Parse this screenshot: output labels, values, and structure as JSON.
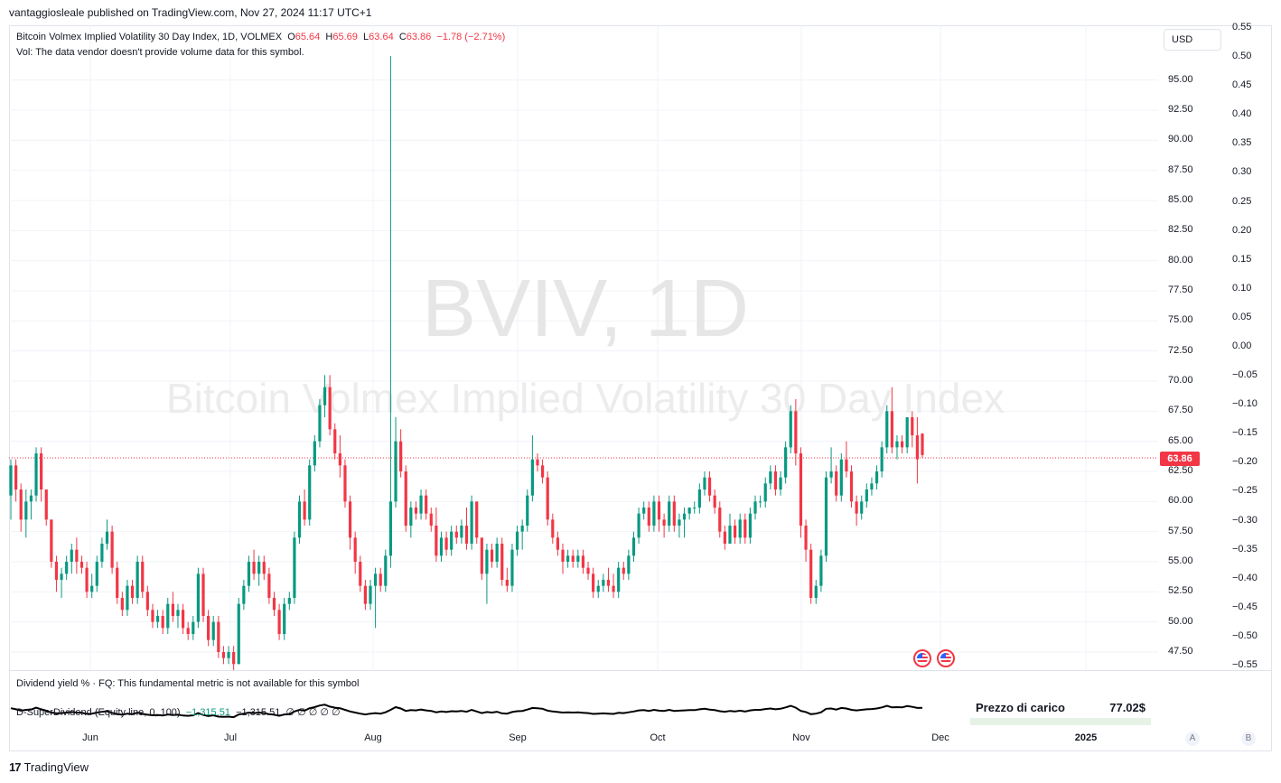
{
  "header": {
    "publish_line": "vantaggiosleale published on TradingView.com, Nov 27, 2024 11:17 UTC+1"
  },
  "legend": {
    "title": "Bitcoin Volmex Implied Volatility 30 Day Index, 1D, VOLMEX",
    "o_label": "O",
    "o_value": "65.64",
    "h_label": "H",
    "h_value": "65.69",
    "l_label": "L",
    "l_value": "63.64",
    "c_label": "C",
    "c_value": "63.86",
    "change": "−1.78 (−2.71%)",
    "vol_note": "Vol: The data vendor doesn't provide volume data for this symbol."
  },
  "watermark": {
    "symbol": "BVIV, 1D",
    "name": "Bitcoin Volmex Implied Volatility 30 Day Index"
  },
  "currency_button": "USD",
  "last_price": "63.86",
  "price_axis_labels": [
    "95.00",
    "92.50",
    "90.00",
    "87.50",
    "85.00",
    "82.50",
    "80.00",
    "77.50",
    "75.00",
    "72.50",
    "70.00",
    "67.50",
    "65.00",
    "62.50",
    "60.00",
    "57.50",
    "55.00",
    "52.50",
    "50.00",
    "47.50"
  ],
  "right_axis_labels": [
    "0.55",
    "0.50",
    "0.45",
    "0.40",
    "0.35",
    "0.30",
    "0.25",
    "0.20",
    "0.15",
    "0.10",
    "0.05",
    "0.00",
    "−0.05",
    "−0.10",
    "−0.15",
    "−0.20",
    "−0.25",
    "−0.30",
    "−0.35",
    "−0.40",
    "−0.45",
    "−0.50",
    "−0.55"
  ],
  "dividend_pane": {
    "legend": "Dividend yield % · FQ: This fundamental metric is not available for this symbol"
  },
  "superdividend": {
    "name": "D-SuperDividend (Equity line, 0, 100)",
    "value1": "−1,315.51",
    "value2": "−1,315.51",
    "zeros": "∅  ∅  ∅  ∅  ∅"
  },
  "overlay": {
    "label": "Prezzo di carico",
    "value": "77.02$"
  },
  "time_axis": {
    "labels": [
      {
        "text": "Jun",
        "bold": false
      },
      {
        "text": "Jul",
        "bold": false
      },
      {
        "text": "Aug",
        "bold": false
      },
      {
        "text": "Sep",
        "bold": false
      },
      {
        "text": "Oct",
        "bold": false
      },
      {
        "text": "Nov",
        "bold": false
      },
      {
        "text": "Dec",
        "bold": false
      },
      {
        "text": "2025",
        "bold": true
      }
    ]
  },
  "buttons": {
    "auto": "A",
    "b": "B"
  },
  "footer": {
    "brand": "TradingView",
    "logo": "17"
  },
  "colors": {
    "up": "#089981",
    "down": "#f23645",
    "grid": "#f0f3fa"
  },
  "chart_data": {
    "type": "candlestick",
    "title": "Bitcoin Volmex Implied Volatility 30 Day Index, 1D, VOLMEX",
    "ylim": [
      46,
      97
    ],
    "candles": [
      [
        60.5,
        63.5,
        58.5,
        63
      ],
      [
        63,
        63.5,
        60,
        61
      ],
      [
        61,
        61.5,
        57.5,
        58.5
      ],
      [
        58.5,
        61,
        57,
        60
      ],
      [
        60,
        61,
        58.5,
        60.5
      ],
      [
        60.5,
        64.5,
        60,
        64
      ],
      [
        64,
        64.5,
        60,
        61
      ],
      [
        61,
        61,
        58,
        58.5
      ],
      [
        58.5,
        58.5,
        54.5,
        55
      ],
      [
        55,
        55.5,
        52.5,
        53.5
      ],
      [
        53.5,
        54.5,
        52,
        54
      ],
      [
        54,
        55.5,
        53.5,
        55
      ],
      [
        55,
        56.5,
        54,
        56
      ],
      [
        56,
        57,
        54,
        55
      ],
      [
        55,
        55.5,
        54,
        54.5
      ],
      [
        54.5,
        55,
        52,
        52.5
      ],
      [
        52.5,
        54,
        52,
        53
      ],
      [
        53,
        55.5,
        52.5,
        55
      ],
      [
        55,
        57,
        54.5,
        56.5
      ],
      [
        56.5,
        58.5,
        56,
        57.5
      ],
      [
        57.5,
        58,
        54,
        54.5
      ],
      [
        54.5,
        55,
        51.5,
        52
      ],
      [
        52,
        52.5,
        50.5,
        51
      ],
      [
        51,
        53.5,
        50.5,
        53
      ],
      [
        53,
        53.5,
        51.5,
        52
      ],
      [
        52,
        55.5,
        51.5,
        55
      ],
      [
        55,
        55.5,
        52,
        52.5
      ],
      [
        52.5,
        53,
        50.5,
        51
      ],
      [
        51,
        51.5,
        49.5,
        50
      ],
      [
        50,
        51,
        49.5,
        50.5
      ],
      [
        50.5,
        51,
        49,
        49.5
      ],
      [
        49.5,
        52,
        49,
        51.5
      ],
      [
        51.5,
        52.5,
        50,
        50.5
      ],
      [
        50.5,
        51.5,
        49.5,
        51
      ],
      [
        51,
        51.5,
        49,
        49.5
      ],
      [
        49.5,
        50,
        48.5,
        49
      ],
      [
        49,
        50.5,
        48.5,
        50
      ],
      [
        50,
        54.5,
        49.5,
        54
      ],
      [
        54,
        54.5,
        50,
        50.5
      ],
      [
        50.5,
        51,
        48,
        48.5
      ],
      [
        48.5,
        50.5,
        48,
        50
      ],
      [
        50,
        50.5,
        47,
        47.5
      ],
      [
        47.5,
        48,
        46.5,
        47
      ],
      [
        47,
        48,
        46.5,
        47.5
      ],
      [
        47.5,
        48,
        46,
        46.5
      ],
      [
        46.5,
        52,
        46.5,
        51.5
      ],
      [
        51.5,
        53.5,
        51,
        53
      ],
      [
        53,
        55.5,
        52.5,
        55
      ],
      [
        55,
        56,
        53.5,
        54
      ],
      [
        54,
        55.5,
        53,
        55
      ],
      [
        55,
        55.5,
        53.5,
        54
      ],
      [
        54,
        54.5,
        51.5,
        52
      ],
      [
        52,
        52.5,
        50.5,
        51
      ],
      [
        51,
        51.5,
        48.5,
        49
      ],
      [
        49,
        52,
        48.5,
        51.5
      ],
      [
        51.5,
        52.5,
        51,
        52
      ],
      [
        52,
        57.5,
        51.5,
        57
      ],
      [
        57,
        60.5,
        56.5,
        60
      ],
      [
        60,
        61,
        58,
        58.5
      ],
      [
        58.5,
        63.5,
        58,
        63
      ],
      [
        63,
        65.5,
        62.5,
        65
      ],
      [
        65,
        68.5,
        64.5,
        68
      ],
      [
        68,
        70.5,
        67,
        69.5
      ],
      [
        69.5,
        70.5,
        65.5,
        66
      ],
      [
        66,
        66.5,
        63.5,
        64
      ],
      [
        64,
        65.5,
        62,
        63
      ],
      [
        63,
        63.5,
        59.5,
        60
      ],
      [
        60,
        60.5,
        56,
        57
      ],
      [
        57,
        57.5,
        54,
        55
      ],
      [
        55,
        55.5,
        52.5,
        53
      ],
      [
        53,
        53.5,
        51,
        51.5
      ],
      [
        51.5,
        53.5,
        51,
        53
      ],
      [
        53,
        54.5,
        49.5,
        54
      ],
      [
        54,
        54.5,
        52.5,
        53
      ],
      [
        53,
        56,
        52.5,
        55.5
      ],
      [
        55.5,
        97,
        54.5,
        60
      ],
      [
        60,
        67,
        59.5,
        65
      ],
      [
        65,
        66,
        62,
        62.5
      ],
      [
        62.5,
        63,
        57.5,
        58
      ],
      [
        58,
        60,
        57,
        59.5
      ],
      [
        59.5,
        60,
        58.5,
        59
      ],
      [
        59,
        61,
        58.5,
        60.5
      ],
      [
        60.5,
        61,
        58.5,
        59
      ],
      [
        59,
        59.5,
        57.5,
        58
      ],
      [
        58,
        59.5,
        55,
        55.5
      ],
      [
        55.5,
        57.5,
        55,
        57
      ],
      [
        57,
        57.5,
        55.5,
        56
      ],
      [
        56,
        58,
        55.5,
        57.5
      ],
      [
        57.5,
        58,
        56.5,
        57
      ],
      [
        57,
        58.5,
        56.5,
        58
      ],
      [
        58,
        59.5,
        56,
        56.5
      ],
      [
        56.5,
        60.5,
        56,
        60
      ],
      [
        60,
        60,
        56.5,
        57
      ],
      [
        57,
        57,
        53.5,
        54
      ],
      [
        54,
        56.5,
        51.5,
        56
      ],
      [
        56,
        56.5,
        54.5,
        55
      ],
      [
        55,
        57,
        54.5,
        56.5
      ],
      [
        56.5,
        57,
        53,
        53.5
      ],
      [
        53.5,
        54.5,
        52.5,
        53
      ],
      [
        53,
        56.5,
        52.5,
        56
      ],
      [
        56,
        58,
        55.5,
        57.5
      ],
      [
        57.5,
        58.5,
        56,
        58
      ],
      [
        58,
        61,
        57.5,
        60.5
      ],
      [
        60.5,
        65.5,
        60,
        63.5
      ],
      [
        63.5,
        64,
        62.5,
        63
      ],
      [
        63,
        63.5,
        61.5,
        62
      ],
      [
        62,
        62.5,
        58,
        58.5
      ],
      [
        58.5,
        59,
        56.5,
        57
      ],
      [
        57,
        57.5,
        55.5,
        56
      ],
      [
        56,
        56.5,
        54,
        55
      ],
      [
        55,
        56,
        54.5,
        55.5
      ],
      [
        55.5,
        56,
        54.5,
        55
      ],
      [
        55,
        56,
        54.5,
        55.5
      ],
      [
        55.5,
        56,
        54,
        54.5
      ],
      [
        54.5,
        55,
        53.5,
        54
      ],
      [
        54,
        54.5,
        52,
        52.5
      ],
      [
        52.5,
        53.5,
        52,
        53
      ],
      [
        53,
        54,
        52.5,
        53.5
      ],
      [
        53.5,
        54.5,
        52.5,
        53
      ],
      [
        53,
        54,
        52,
        52.5
      ],
      [
        52.5,
        55,
        52,
        54.5
      ],
      [
        54.5,
        55,
        53.5,
        54
      ],
      [
        54,
        56,
        53.5,
        55.5
      ],
      [
        55.5,
        57.5,
        55,
        57
      ],
      [
        57,
        59.5,
        56.5,
        59
      ],
      [
        59,
        60,
        58.5,
        59.5
      ],
      [
        59.5,
        60,
        57.5,
        58
      ],
      [
        58,
        60.5,
        57.5,
        60
      ],
      [
        60,
        60.5,
        57.5,
        58.5
      ],
      [
        58.5,
        59,
        57,
        58
      ],
      [
        58,
        60.5,
        57.5,
        60
      ],
      [
        60,
        60.5,
        57.5,
        58
      ],
      [
        58,
        59,
        57,
        58.5
      ],
      [
        58.5,
        59.5,
        57,
        59
      ],
      [
        59,
        59.5,
        58.5,
        59.5
      ],
      [
        59.5,
        60,
        59,
        59.5
      ],
      [
        59.5,
        61.5,
        59,
        61
      ],
      [
        61,
        62.5,
        60.5,
        62
      ],
      [
        62,
        62.5,
        60,
        60.5
      ],
      [
        60.5,
        61,
        59,
        59.5
      ],
      [
        59.5,
        60,
        57,
        57.5
      ],
      [
        57.5,
        58,
        56,
        56.5
      ],
      [
        56.5,
        59,
        56.5,
        58
      ],
      [
        58,
        58.5,
        56.5,
        57
      ],
      [
        57,
        59,
        56.5,
        58.5
      ],
      [
        58.5,
        59,
        56.5,
        57
      ],
      [
        57,
        59.5,
        56.5,
        59
      ],
      [
        59,
        60.5,
        58.5,
        60
      ],
      [
        60,
        60.5,
        59.5,
        60
      ],
      [
        60,
        62,
        59.5,
        61.5
      ],
      [
        61.5,
        63,
        61,
        62.5
      ],
      [
        62.5,
        63,
        60.5,
        61
      ],
      [
        61,
        62.5,
        60.5,
        62
      ],
      [
        62,
        65,
        61.5,
        64.5
      ],
      [
        64.5,
        68,
        64,
        67.5
      ],
      [
        67.5,
        68.5,
        63,
        64
      ],
      [
        64,
        64.5,
        57,
        58
      ],
      [
        58,
        58.5,
        55,
        56
      ],
      [
        56,
        56.5,
        51.5,
        52
      ],
      [
        52,
        53.5,
        51.5,
        53
      ],
      [
        53,
        56,
        52.5,
        55.5
      ],
      [
        55.5,
        62.5,
        55,
        62
      ],
      [
        62,
        64.5,
        61.5,
        62.5
      ],
      [
        62.5,
        63,
        60,
        60.5
      ],
      [
        60.5,
        64,
        60,
        63.5
      ],
      [
        63.5,
        65,
        62,
        62.5
      ],
      [
        62.5,
        63,
        59.5,
        60
      ],
      [
        60,
        60.5,
        58,
        59
      ],
      [
        59,
        60.5,
        58.5,
        60
      ],
      [
        60,
        61.5,
        59.5,
        61
      ],
      [
        61,
        62,
        60.5,
        61.5
      ],
      [
        61.5,
        63,
        61,
        62.5
      ],
      [
        62.5,
        65,
        62,
        64.5
      ],
      [
        64.5,
        68,
        64,
        67.5
      ],
      [
        67.5,
        69.5,
        64,
        64.5
      ],
      [
        64.5,
        65.5,
        63.5,
        65
      ],
      [
        65,
        65.5,
        64,
        64.5
      ],
      [
        64.5,
        67,
        64,
        67
      ],
      [
        67,
        67.5,
        64.5,
        65.5
      ],
      [
        65.5,
        67,
        61.5,
        63.5
      ],
      [
        65.64,
        65.69,
        63.64,
        63.86
      ]
    ]
  }
}
